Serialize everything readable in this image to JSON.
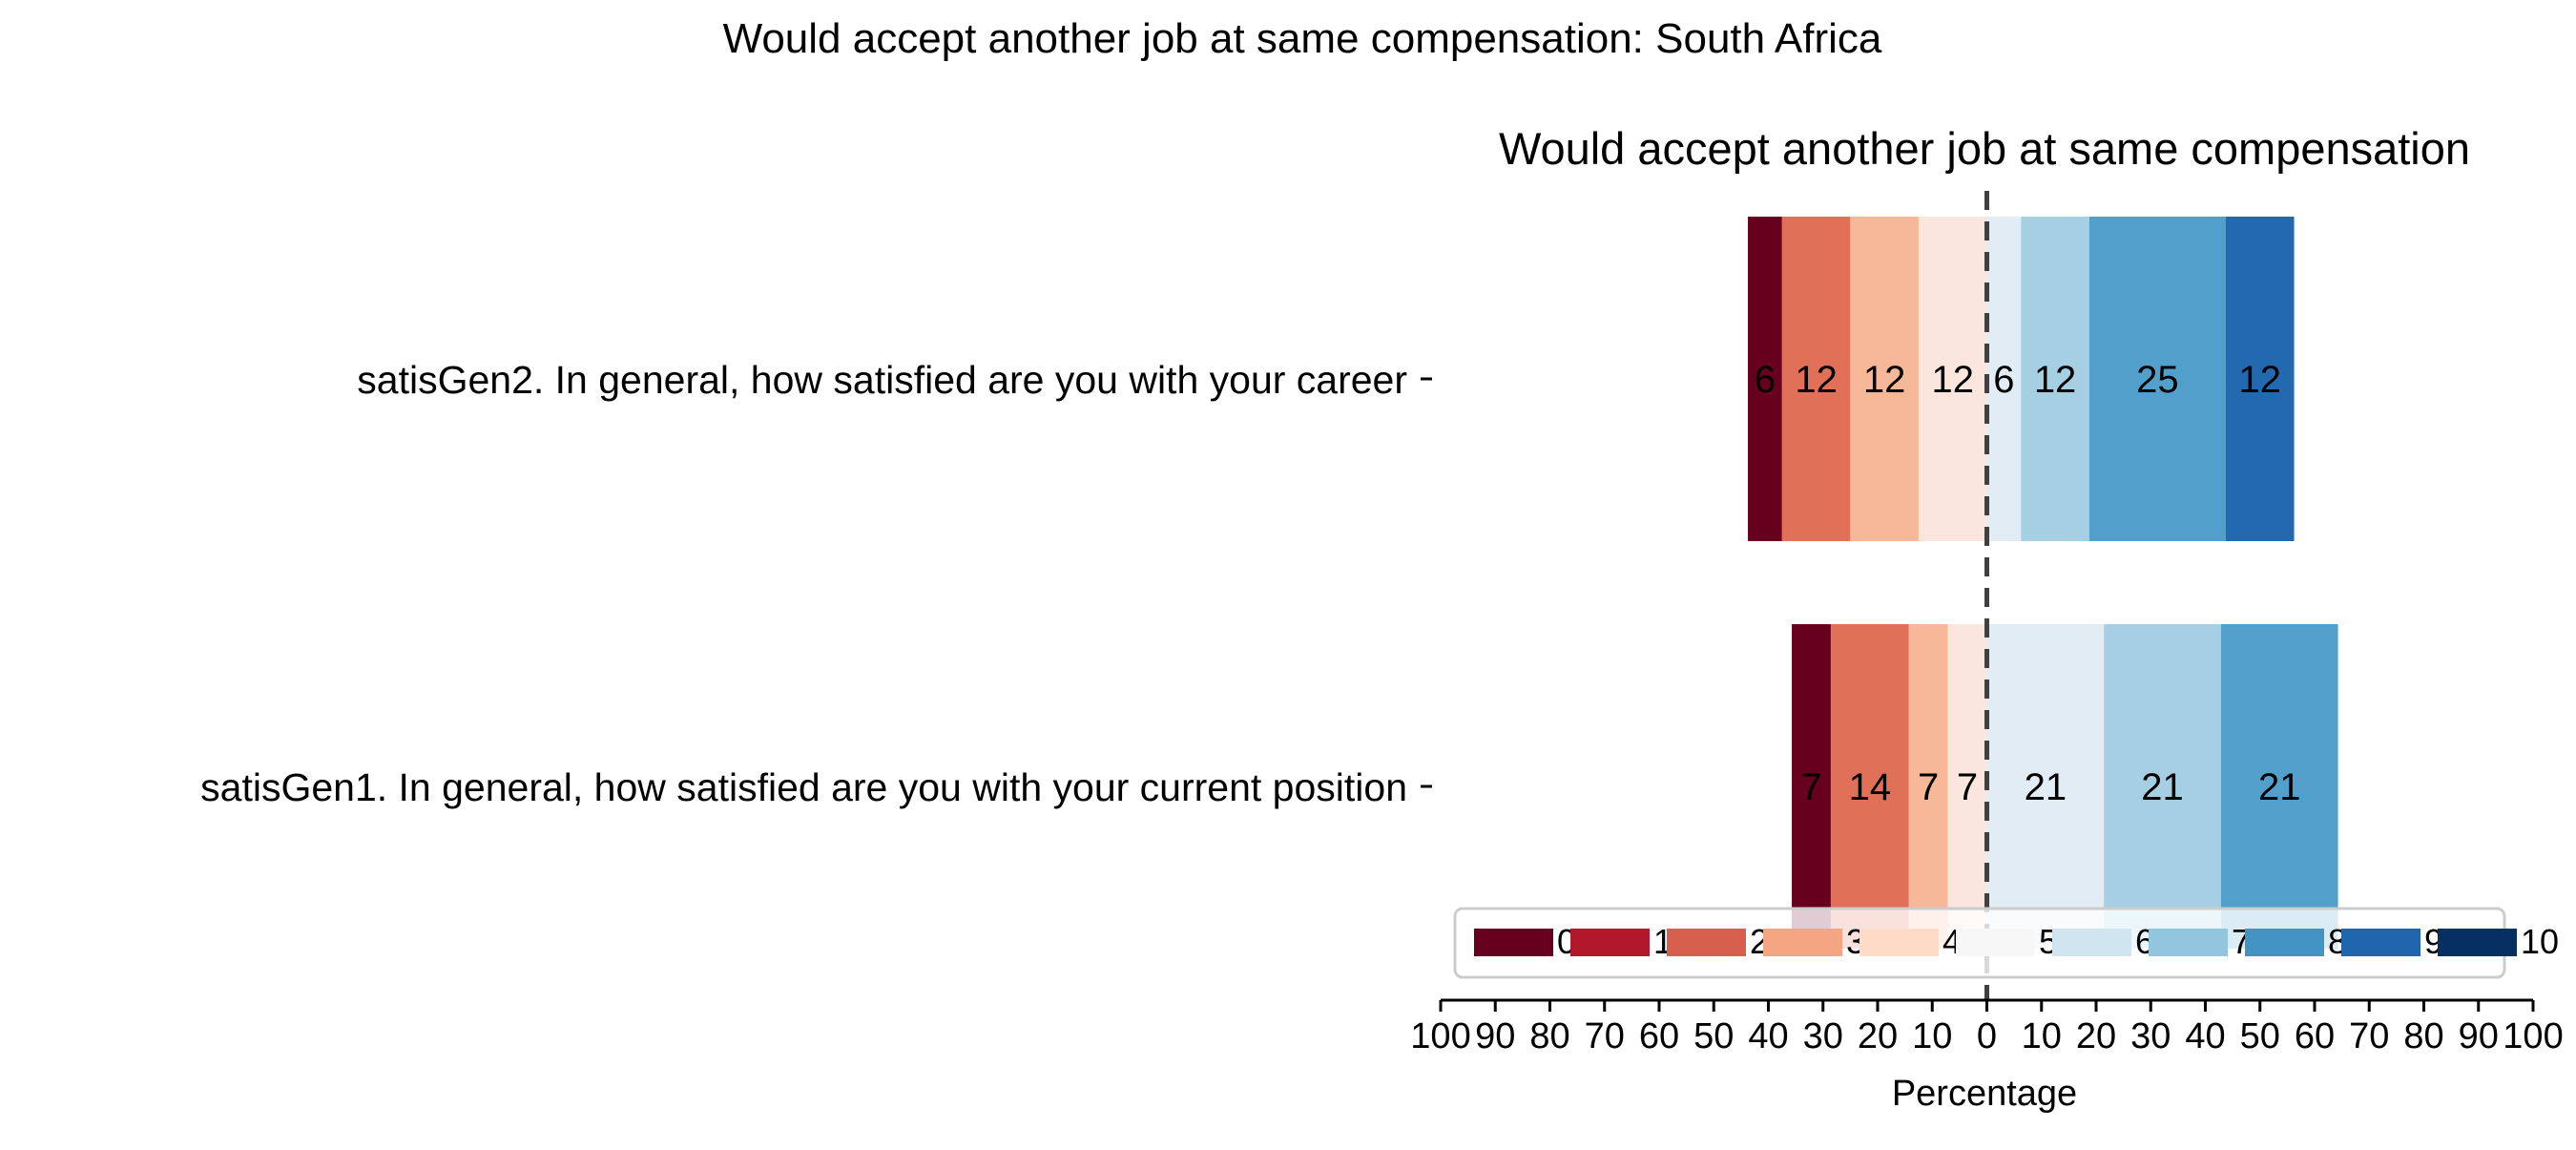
{
  "chart_data": {
    "type": "bar",
    "suptitle": "Would accept another job at same compensation: South Africa",
    "title": "Would accept another job at same compensation",
    "xlabel": "Percentage",
    "xlim": [
      -100,
      100
    ],
    "xticks": [
      -100,
      -90,
      -80,
      -70,
      -60,
      -50,
      -40,
      -30,
      -20,
      -10,
      0,
      10,
      20,
      30,
      40,
      50,
      60,
      70,
      80,
      90,
      100
    ],
    "xtick_labels": [
      "100",
      "90",
      "80",
      "70",
      "60",
      "50",
      "40",
      "30",
      "20",
      "10",
      "0",
      "10",
      "20",
      "30",
      "40",
      "50",
      "60",
      "70",
      "80",
      "90",
      "100"
    ],
    "categories": [
      "satisGen2. In general, how satisfied are you with your career",
      "satisGen1. In general, how satisfied are you with your current position"
    ],
    "legend_labels": [
      "0",
      "1",
      "2",
      "3",
      "4",
      "5",
      "6",
      "7",
      "8",
      "9",
      "10"
    ],
    "legend_colors": [
      "#67001f",
      "#b2182b",
      "#d6604d",
      "#f4a582",
      "#fddbc7",
      "#f7f7f7",
      "#d1e5f0",
      "#92c5de",
      "#4393c3",
      "#2166ac",
      "#053061"
    ],
    "legend_placement": "lower-right",
    "bars": [
      {
        "category": "satisGen2. In general, how satisfied are you with your career",
        "segments": [
          {
            "start": -43.75,
            "width": 6.25,
            "color": "#67001f",
            "label": "6"
          },
          {
            "start": -37.5,
            "width": 12.5,
            "color": "#e07058",
            "label": "12"
          },
          {
            "start": -25.0,
            "width": 12.5,
            "color": "#f7b799",
            "label": "12"
          },
          {
            "start": -12.5,
            "width": 12.5,
            "color": "#fae6dc",
            "label": "12"
          },
          {
            "start": 0.0,
            "width": 6.25,
            "color": "#e1ecf4",
            "label": "6"
          },
          {
            "start": 6.25,
            "width": 12.5,
            "color": "#a7cfe4",
            "label": "12"
          },
          {
            "start": 18.75,
            "width": 25.0,
            "color": "#539fcb",
            "label": "25"
          },
          {
            "start": 43.75,
            "width": 12.5,
            "color": "#2369af",
            "label": "12"
          }
        ]
      },
      {
        "category": "satisGen1. In general, how satisfied are you with your current position",
        "segments": [
          {
            "start": -35.71,
            "width": 7.14,
            "color": "#67001f",
            "label": "7"
          },
          {
            "start": -28.57,
            "width": 14.29,
            "color": "#e07058",
            "label": "14"
          },
          {
            "start": -14.29,
            "width": 7.14,
            "color": "#f7b799",
            "label": "7"
          },
          {
            "start": -7.14,
            "width": 7.14,
            "color": "#fae6dc",
            "label": "7"
          },
          {
            "start": 0.0,
            "width": 21.43,
            "color": "#e1ecf4",
            "label": "21"
          },
          {
            "start": 21.43,
            "width": 21.43,
            "color": "#a7cfe4",
            "label": "21"
          },
          {
            "start": 42.86,
            "width": 21.43,
            "color": "#539fcb",
            "label": "21"
          }
        ]
      }
    ],
    "center_line": 0
  }
}
